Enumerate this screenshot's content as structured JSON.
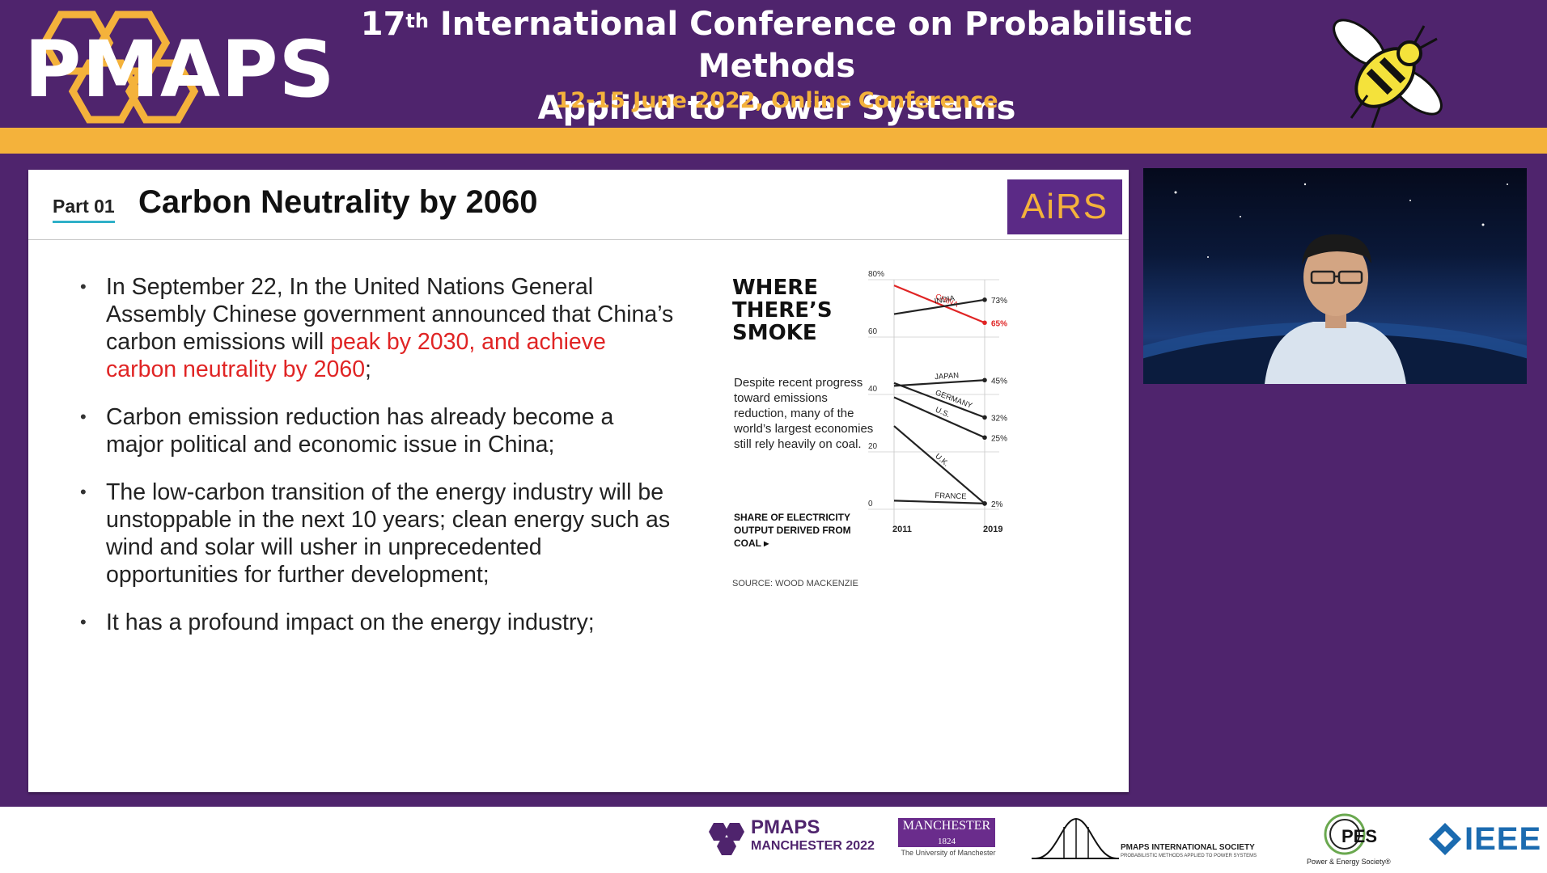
{
  "header": {
    "logo_text": "PMAPS",
    "conference_number": "17",
    "conference_ordinal": "th",
    "conference_title_line1": " International Conference on Probabilistic Methods",
    "conference_title_line2": "Applied to Power Systems",
    "conference_date": "12-15 June 2022, Online Conference",
    "colors": {
      "purple": "#4f246d",
      "gold": "#f4b23b"
    }
  },
  "slide": {
    "part_label": "Part 01",
    "title": "Carbon Neutrality by 2060",
    "airs_logo": "AiRS",
    "bullets": [
      {
        "text_before": "In September 22, In the United Nations General Assembly Chinese government announced that China’s carbon emissions will ",
        "text_highlight": "peak by 2030, and achieve carbon neutrality by 2060",
        "text_after": ";"
      },
      {
        "text": "Carbon emission reduction has already become a major political and economic issue in China;"
      },
      {
        "text": "The low-carbon transition of the energy industry will be unstoppable in the next 10 years; clean energy such as wind and solar will usher in unprecedented opportunities for further development;"
      },
      {
        "text": "It has a profound impact on the energy industry;"
      }
    ],
    "highlight_color": "#e02424"
  },
  "chart": {
    "headline": "WHERE THERE’S SMOKE",
    "description": "Despite recent progress toward emissions reduction, many of the world’s largest economies still rely heavily on coal.",
    "note": "SHARE OF ELECTRICITY OUTPUT DERIVED FROM COAL ▸",
    "source": "SOURCE: WOOD MACKENZIE"
  },
  "chart_data": {
    "type": "line",
    "title": "WHERE THERE’S SMOKE",
    "ylabel": "SHARE OF ELECTRICITY OUTPUT DERIVED FROM COAL",
    "x": [
      "2011",
      "2019"
    ],
    "ylim": [
      0,
      80
    ],
    "y_ticks": [
      "0",
      "20",
      "40",
      "60",
      "80%"
    ],
    "series": [
      {
        "name": "CHINA",
        "values": [
          78,
          65
        ],
        "end_label": "65%",
        "color": "#e02424"
      },
      {
        "name": "INDIA",
        "values": [
          68,
          73
        ],
        "end_label": "73%",
        "color": "#222222"
      },
      {
        "name": "JAPAN",
        "values": [
          43,
          45
        ],
        "end_label": "45%",
        "color": "#222222"
      },
      {
        "name": "GERMANY",
        "values": [
          44,
          32
        ],
        "end_label": "32%",
        "color": "#222222"
      },
      {
        "name": "U.S.",
        "values": [
          39,
          25
        ],
        "end_label": "25%",
        "color": "#222222"
      },
      {
        "name": "U.K.",
        "values": [
          29,
          2
        ],
        "end_label": "",
        "color": "#222222"
      },
      {
        "name": "FRANCE",
        "values": [
          3,
          2
        ],
        "end_label": "2%",
        "color": "#222222"
      }
    ]
  },
  "footer": {
    "pmaps_logo": "PMAPS",
    "pmaps_sub": "MANCHESTER 2022",
    "manchester": "MANCHESTER",
    "manchester_year": "1824",
    "manchester_sub": "The University of Manchester",
    "society": "PMAPS INTERNATIONAL SOCIETY",
    "society_sub": "PROBABILISTIC METHODS APPLIED TO POWER SYSTEMS",
    "pes": "PES",
    "pes_sub": "Power & Energy Society®",
    "ieee": "IEEE"
  }
}
